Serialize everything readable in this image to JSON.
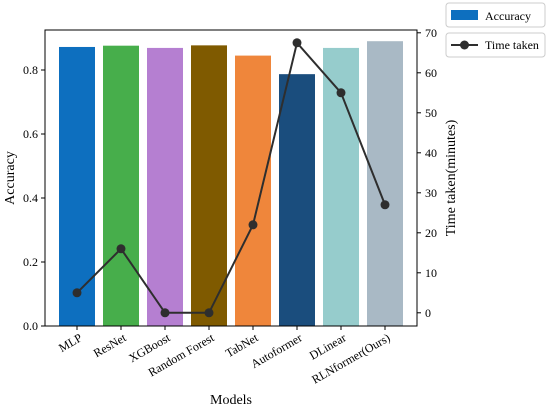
{
  "chart_data": {
    "type": "bar",
    "title": "",
    "xlabel": "Models",
    "ylabel": "Accuracy",
    "y2label": "Time taken(minutes)",
    "categories": [
      "MLP",
      "ResNet",
      "XGBoost",
      "Random Forest",
      "TabNet",
      "Autoformer",
      "DLinear",
      "RLNformer(Ours)"
    ],
    "series": [
      {
        "name": "Accuracy",
        "kind": "bar",
        "axis": "left",
        "values": [
          0.872,
          0.876,
          0.869,
          0.877,
          0.845,
          0.787,
          0.869,
          0.89
        ],
        "colors": [
          "#0d6fbf",
          "#47ae4b",
          "#b57fd1",
          "#7f5a00",
          "#ef863b",
          "#1a4d7d",
          "#96cccc",
          "#a9b9c5"
        ]
      },
      {
        "name": "Time taken",
        "kind": "line",
        "axis": "right",
        "values": [
          5,
          16,
          0,
          0,
          22,
          67.5,
          55,
          27
        ],
        "color": "#2e2e2e"
      }
    ],
    "ylim": [
      0,
      0.925
    ],
    "y2lim": [
      -3.3,
      70.7
    ],
    "yticks": [
      "0.0",
      "0.2",
      "0.4",
      "0.6",
      "0.8"
    ],
    "yticks_values": [
      0,
      0.2,
      0.4,
      0.6,
      0.8
    ],
    "y2ticks": [
      "0",
      "10",
      "20",
      "30",
      "40",
      "50",
      "60",
      "70"
    ],
    "y2ticks_values": [
      0,
      10,
      20,
      30,
      40,
      50,
      60,
      70
    ],
    "grid": false,
    "legend_position": "top-right, outside plot"
  }
}
